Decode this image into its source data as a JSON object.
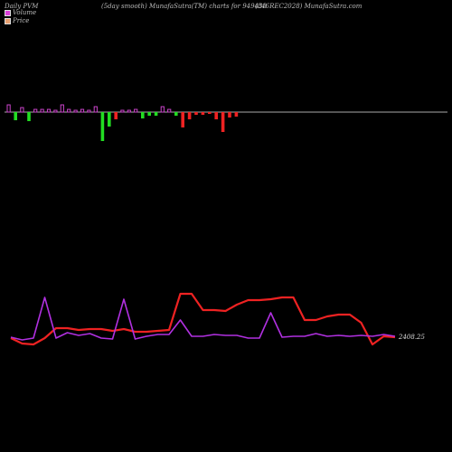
{
  "header": {
    "left": "Daily PVM",
    "center": "(5day smooth) MunafaSutra(TM) charts for 949438",
    "right": "(846REC2028) MunafaSutra.com"
  },
  "legend": [
    {
      "label": "Volume",
      "color": "#d83cd8"
    },
    {
      "label": "Price",
      "color": "#e8a070"
    }
  ],
  "chart_data": {
    "type": "line",
    "volume": {
      "baseline_color": "#aaaaaa",
      "up_color": "#22dd22",
      "down_color": "#ee2222",
      "neutral_color": "#cc44cc",
      "bars": [
        {
          "v": 8,
          "c": "n"
        },
        {
          "v": -9,
          "c": "up"
        },
        {
          "v": 5,
          "c": "n"
        },
        {
          "v": -10,
          "c": "up"
        },
        {
          "v": 3,
          "c": "n"
        },
        {
          "v": 3,
          "c": "n"
        },
        {
          "v": 3,
          "c": "n"
        },
        {
          "v": 2,
          "c": "n"
        },
        {
          "v": 8,
          "c": "n"
        },
        {
          "v": 3,
          "c": "n"
        },
        {
          "v": 2,
          "c": "n"
        },
        {
          "v": 3,
          "c": "n"
        },
        {
          "v": 2,
          "c": "n"
        },
        {
          "v": 6,
          "c": "n"
        },
        {
          "v": -32,
          "c": "up"
        },
        {
          "v": -16,
          "c": "up"
        },
        {
          "v": -8,
          "c": "down"
        },
        {
          "v": 2,
          "c": "n"
        },
        {
          "v": 2,
          "c": "n"
        },
        {
          "v": 3,
          "c": "n"
        },
        {
          "v": -7,
          "c": "up"
        },
        {
          "v": -4,
          "c": "up"
        },
        {
          "v": -4,
          "c": "up"
        },
        {
          "v": 6,
          "c": "n"
        },
        {
          "v": 3,
          "c": "n"
        },
        {
          "v": -4,
          "c": "up"
        },
        {
          "v": -17,
          "c": "down"
        },
        {
          "v": -8,
          "c": "down"
        },
        {
          "v": -3,
          "c": "down"
        },
        {
          "v": -3,
          "c": "down"
        },
        {
          "v": -2,
          "c": "down"
        },
        {
          "v": -8,
          "c": "down"
        },
        {
          "v": -22,
          "c": "down"
        },
        {
          "v": -6,
          "c": "down"
        },
        {
          "v": -5,
          "c": "down"
        }
      ]
    },
    "price": [
      {
        "p": 374,
        "m": 373
      },
      {
        "p": 380,
        "m": 376
      },
      {
        "p": 381,
        "m": 374
      },
      {
        "p": 374,
        "m": 329
      },
      {
        "p": 363,
        "m": 374
      },
      {
        "p": 363,
        "m": 368
      },
      {
        "p": 365,
        "m": 371
      },
      {
        "p": 364,
        "m": 369
      },
      {
        "p": 364,
        "m": 374
      },
      {
        "p": 366,
        "m": 375
      },
      {
        "p": 364,
        "m": 331
      },
      {
        "p": 367,
        "m": 375
      },
      {
        "p": 367,
        "m": 372
      },
      {
        "p": 366,
        "m": 370
      },
      {
        "p": 365,
        "m": 370
      },
      {
        "p": 325,
        "m": 354
      },
      {
        "p": 325,
        "m": 372
      },
      {
        "p": 343,
        "m": 372
      },
      {
        "p": 343,
        "m": 370
      },
      {
        "p": 344,
        "m": 371
      },
      {
        "p": 337,
        "m": 371
      },
      {
        "p": 332,
        "m": 374
      },
      {
        "p": 332,
        "m": 374
      },
      {
        "p": 331,
        "m": 346
      },
      {
        "p": 329,
        "m": 373
      },
      {
        "p": 329,
        "m": 372
      },
      {
        "p": 354,
        "m": 372
      },
      {
        "p": 354,
        "m": 369
      },
      {
        "p": 350,
        "m": 372
      },
      {
        "p": 348,
        "m": 371
      },
      {
        "p": 348,
        "m": 372
      },
      {
        "p": 357,
        "m": 371
      },
      {
        "p": 381,
        "m": 372
      },
      {
        "p": 372,
        "m": 370
      },
      {
        "p": 373,
        "m": 372
      }
    ],
    "price_color": "#ee2222",
    "ma_color": "#b030e0",
    "last_label": "2408.25"
  }
}
